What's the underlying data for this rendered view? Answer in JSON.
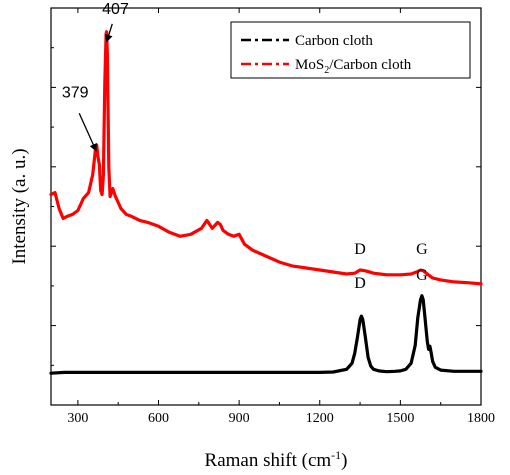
{
  "chart_data": {
    "type": "line",
    "xlabel": "Raman shift (cm",
    "xlabel_sup": "-1",
    "xlabel_close": ")",
    "ylabel": "Intensity (a. u.)",
    "xlim": [
      200,
      1800
    ],
    "ylim": [
      0,
      100
    ],
    "xticks": [
      300,
      600,
      900,
      1200,
      1500,
      1800
    ],
    "yticks_unlabeled": true,
    "grid": false,
    "legend": {
      "placement": "top-right",
      "entries": [
        {
          "label": "Carbon cloth",
          "color": "#000000",
          "style": "dash-dot"
        },
        {
          "label_main": "MoS",
          "label_sub": "2",
          "label_rest": "/Carbon cloth",
          "color": "#ff0000",
          "style": "dash-dot"
        }
      ]
    },
    "series": [
      {
        "color": "#000000",
        "x": [
          200,
          250,
          300,
          400,
          500,
          600,
          700,
          800,
          900,
          1000,
          1100,
          1200,
          1250,
          1300,
          1320,
          1330,
          1340,
          1350,
          1355,
          1360,
          1370,
          1380,
          1390,
          1400,
          1420,
          1450,
          1480,
          1500,
          1520,
          1540,
          1555,
          1565,
          1575,
          1580,
          1585,
          1590,
          1600,
          1605,
          1610,
          1615,
          1620,
          1630,
          1650,
          1700,
          1750,
          1800
        ],
        "y": [
          8.0,
          8.2,
          8.2,
          8.2,
          8.2,
          8.2,
          8.2,
          8.2,
          8.2,
          8.2,
          8.2,
          8.2,
          8.3,
          9.0,
          10.5,
          13.0,
          17.0,
          21.5,
          22.4,
          21.5,
          17.0,
          12.0,
          9.8,
          9.0,
          8.6,
          8.4,
          8.5,
          8.6,
          9.0,
          10.5,
          15.0,
          22.0,
          26.5,
          27.5,
          26.5,
          23.0,
          16.0,
          14.0,
          14.8,
          13.0,
          11.0,
          9.5,
          8.8,
          8.5,
          8.5,
          8.5
        ]
      },
      {
        "color": "#ff0000",
        "x": [
          200,
          215,
          230,
          245,
          260,
          280,
          300,
          320,
          340,
          355,
          365,
          370,
          375,
          380,
          385,
          390,
          395,
          400,
          405,
          407,
          410,
          415,
          420,
          430,
          440,
          450,
          460,
          480,
          500,
          530,
          560,
          600,
          640,
          680,
          720,
          760,
          780,
          790,
          800,
          820,
          830,
          840,
          860,
          880,
          900,
          920,
          950,
          1000,
          1050,
          1100,
          1150,
          1200,
          1250,
          1300,
          1330,
          1350,
          1370,
          1400,
          1450,
          1500,
          1540,
          1560,
          1575,
          1585,
          1600,
          1620,
          1650,
          1700,
          1750,
          1800
        ],
        "y": [
          53.0,
          53.5,
          49.5,
          47.0,
          47.5,
          48.0,
          49.0,
          52.0,
          53.5,
          58.0,
          64.0,
          65.5,
          62.5,
          60.5,
          54.0,
          53.0,
          58.0,
          81.0,
          93.5,
          94.0,
          88.0,
          60.0,
          52.5,
          54.5,
          52.5,
          51.0,
          49.5,
          48.0,
          47.5,
          46.5,
          46.0,
          45.0,
          43.5,
          42.5,
          43.0,
          44.5,
          46.5,
          45.5,
          44.5,
          46.0,
          45.5,
          44.0,
          43.0,
          42.5,
          43.0,
          40.5,
          39.0,
          37.5,
          36.0,
          35.0,
          34.5,
          34.0,
          33.5,
          33.0,
          33.2,
          34.0,
          33.8,
          33.2,
          32.8,
          32.8,
          33.0,
          33.5,
          34.0,
          33.8,
          33.0,
          32.0,
          31.5,
          31.0,
          30.8,
          30.5
        ]
      }
    ],
    "annotations": [
      {
        "text": "407",
        "x": 440,
        "y": 98.5
      },
      {
        "text": "379",
        "x": 290,
        "y": 77.5
      },
      {
        "text": "D",
        "x": 1350,
        "y": 38.0
      },
      {
        "text": "G",
        "x": 1580,
        "y": 38.0
      },
      {
        "text": "D",
        "x": 1350,
        "y": 29.5
      },
      {
        "text": "G",
        "x": 1580,
        "y": 31.5
      }
    ],
    "arrows": [
      {
        "from": [
          428,
          96.0
        ],
        "to": [
          407,
          91.5
        ]
      },
      {
        "from": [
          305,
          73.5
        ],
        "to": [
          368,
          64.0
        ]
      }
    ]
  }
}
